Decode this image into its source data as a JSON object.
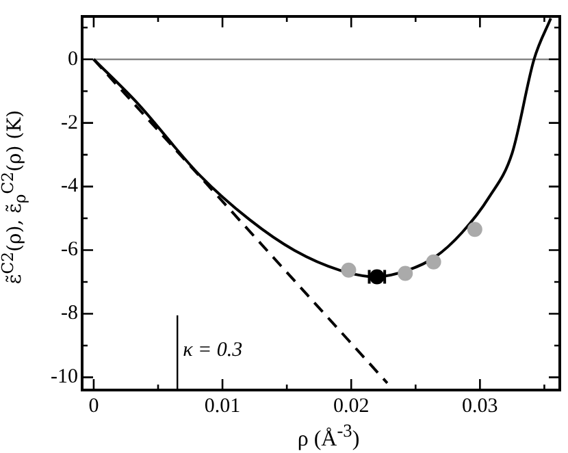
{
  "chart_data": {
    "type": "line",
    "xlabel": "ρ   (Å$^{-3}$)",
    "ylabel": "ε̃$^{C2}$(ρ), ε̃$_{ρ}$$^{C2}$(ρ)   (K)",
    "annotations": [
      {
        "text": "κ = 0.3",
        "x": 0.0065,
        "y": -9.1
      }
    ],
    "xlim": [
      -0.0009,
      0.0362
    ],
    "ylim": [
      -10.4,
      1.35
    ],
    "xticks": [
      0,
      {
        "value": 0.005,
        "label": null
      },
      0.01,
      {
        "value": 0.015,
        "label": null
      },
      0.02,
      {
        "value": 0.025,
        "label": null
      },
      0.03,
      {
        "value": 0.035,
        "label": null
      }
    ],
    "yticks": [
      {
        "value": 1,
        "label": null
      },
      0,
      {
        "value": -1,
        "label": null
      },
      -2,
      {
        "value": -3,
        "label": null
      },
      -4,
      {
        "value": -5,
        "label": null
      },
      -6,
      {
        "value": -7,
        "label": null
      },
      -8,
      {
        "value": -9,
        "label": null
      },
      -10
    ],
    "grid": false,
    "legend": false,
    "series": [
      {
        "color": "#000000",
        "line_style": "solid",
        "marker": "none",
        "x": [
          0,
          0.00333,
          0.00825,
          0.0121,
          0.0156,
          0.0191,
          0.0219,
          0.0244,
          0.0265,
          0.0286,
          0.0307,
          0.0325,
          0.0342,
          0.0355
        ],
        "values": [
          0,
          -1.35,
          -3.65,
          -5.04,
          -6.01,
          -6.63,
          -6.84,
          -6.63,
          -6.22,
          -5.45,
          -4.34,
          -2.95,
          0,
          1.29
        ]
      },
      {
        "type": "line",
        "color": "#000000",
        "line_style": "dashed",
        "marker": "none",
        "x": [
          0,
          0.0228
        ],
        "values": [
          0,
          -10.18
        ]
      },
      {
        "type": "scatter",
        "color": "#aaaaaa",
        "marker": "circle",
        "x": [
          0.0198,
          0.0242,
          0.0264,
          0.0296
        ],
        "values": [
          -6.63,
          -6.73,
          -6.37,
          -5.35
        ]
      },
      {
        "type": "scatter",
        "color": "#000000",
        "marker": "circle",
        "x": [
          0.022
        ],
        "values": [
          -6.84
        ],
        "xerrors": [
          0.0006
        ]
      }
    ],
    "ref_lines": [
      {
        "axis": "y",
        "value": 0,
        "color": "#888888"
      },
      {
        "axis": "x",
        "value": 0.0065,
        "color": "#000000"
      }
    ]
  }
}
